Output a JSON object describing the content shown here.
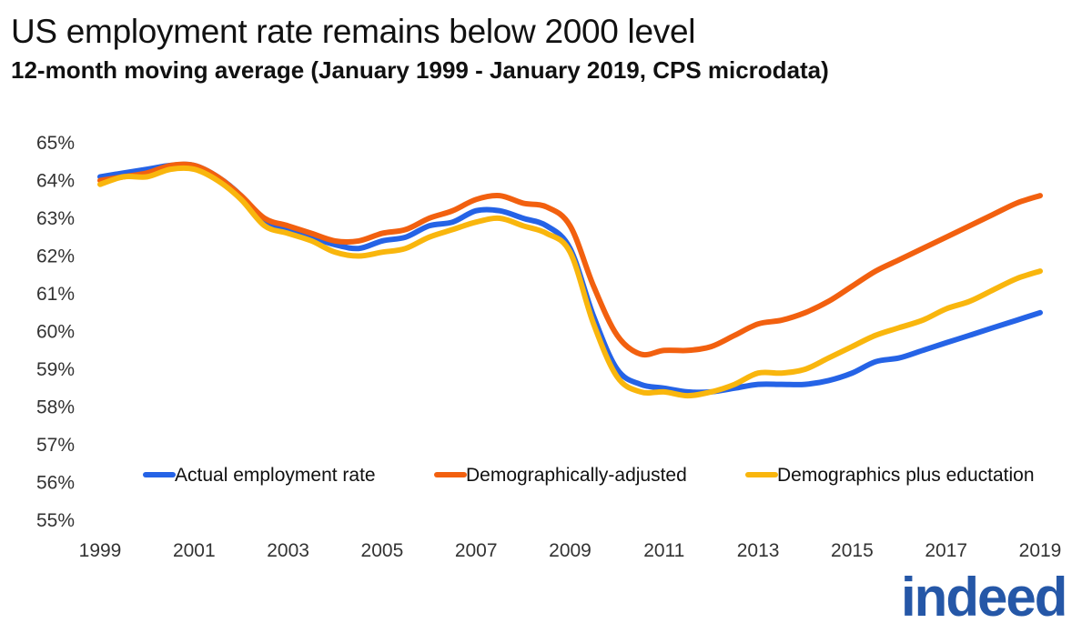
{
  "title": "US employment rate remains below 2000 level",
  "subtitle": "12-month moving average (January 1999 - January 2019, CPS microdata)",
  "logo_text": "indeed",
  "colors": {
    "actual": "#2563e6",
    "demographic": "#f2600f",
    "education": "#f9b60d",
    "logo": "#2557a7"
  },
  "chart_data": {
    "type": "line",
    "title": "US employment rate remains below 2000 level",
    "subtitle": "12-month moving average (January 1999 - January 2019, CPS microdata)",
    "xlabel": "",
    "ylabel": "",
    "xlim": [
      1999,
      2019
    ],
    "ylim": [
      55,
      65
    ],
    "x_ticks": [
      "1999",
      "2001",
      "2003",
      "2005",
      "2007",
      "2009",
      "2011",
      "2013",
      "2015",
      "2017",
      "2019"
    ],
    "y_ticks": [
      "55%",
      "56%",
      "57%",
      "58%",
      "59%",
      "60%",
      "61%",
      "62%",
      "63%",
      "64%",
      "65%"
    ],
    "grid": false,
    "legend_position": "bottom",
    "x": [
      1999,
      1999.5,
      2000,
      2000.5,
      2001,
      2001.5,
      2002,
      2002.5,
      2003,
      2003.5,
      2004,
      2004.5,
      2005,
      2005.5,
      2006,
      2006.5,
      2007,
      2007.5,
      2008,
      2008.5,
      2009,
      2009.5,
      2010,
      2010.5,
      2011,
      2011.5,
      2012,
      2012.5,
      2013,
      2013.5,
      2014,
      2014.5,
      2015,
      2015.5,
      2016,
      2016.5,
      2017,
      2017.5,
      2018,
      2018.5,
      2019
    ],
    "series": [
      {
        "name": "Actual employment rate",
        "color": "#2563e6",
        "values": [
          64.1,
          64.2,
          64.3,
          64.4,
          64.4,
          64.1,
          63.6,
          62.9,
          62.7,
          62.5,
          62.3,
          62.2,
          62.4,
          62.5,
          62.8,
          62.9,
          63.2,
          63.2,
          63.0,
          62.8,
          62.2,
          60.4,
          59.0,
          58.6,
          58.5,
          58.4,
          58.4,
          58.5,
          58.6,
          58.6,
          58.6,
          58.7,
          58.9,
          59.2,
          59.3,
          59.5,
          59.7,
          59.9,
          60.1,
          60.3,
          60.5
        ]
      },
      {
        "name": "Demographically-adjusted",
        "color": "#f2600f",
        "values": [
          64.0,
          64.1,
          64.2,
          64.4,
          64.4,
          64.1,
          63.6,
          63.0,
          62.8,
          62.6,
          62.4,
          62.4,
          62.6,
          62.7,
          63.0,
          63.2,
          63.5,
          63.6,
          63.4,
          63.3,
          62.8,
          61.2,
          59.9,
          59.4,
          59.5,
          59.5,
          59.6,
          59.9,
          60.2,
          60.3,
          60.5,
          60.8,
          61.2,
          61.6,
          61.9,
          62.2,
          62.5,
          62.8,
          63.1,
          63.4,
          63.6
        ]
      },
      {
        "name": "Demographics plus eductation",
        "color": "#f9b60d",
        "values": [
          63.9,
          64.1,
          64.1,
          64.3,
          64.3,
          64.0,
          63.5,
          62.8,
          62.6,
          62.4,
          62.1,
          62.0,
          62.1,
          62.2,
          62.5,
          62.7,
          62.9,
          63.0,
          62.8,
          62.6,
          62.1,
          60.2,
          58.8,
          58.4,
          58.4,
          58.3,
          58.4,
          58.6,
          58.9,
          58.9,
          59.0,
          59.3,
          59.6,
          59.9,
          60.1,
          60.3,
          60.6,
          60.8,
          61.1,
          61.4,
          61.6
        ]
      }
    ]
  }
}
